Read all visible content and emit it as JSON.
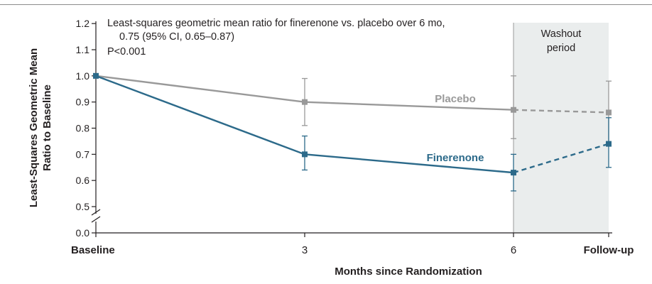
{
  "chart_data": {
    "type": "line",
    "categories": [
      "Baseline",
      "3",
      "6",
      "Follow-up"
    ],
    "xlabel": "Months since Randomization",
    "ylabel_lines": [
      "Least-Squares Geometric Mean",
      "Ratio to Baseline"
    ],
    "ylim": [
      0.0,
      1.2
    ],
    "y_axis_break": true,
    "yticks": [
      "0.0",
      "0.5",
      "0.6",
      "0.7",
      "0.8",
      "0.9",
      "1.0",
      "1.1",
      "1.2"
    ],
    "annotation_lines": [
      "Least-squares geometric mean ratio for finerenone vs. placebo over 6 mo,",
      "0.75 (95% CI, 0.65–0.87)",
      "P<0.001"
    ],
    "shaded_region": {
      "label_lines": [
        "Washout",
        "period"
      ],
      "from": "6",
      "to": "Follow-up",
      "color": "#eaeded"
    },
    "series": [
      {
        "name": "Placebo",
        "color": "#999999",
        "values": [
          1.0,
          0.9,
          0.87,
          0.86
        ],
        "ci_low": [
          null,
          0.81,
          0.76,
          0.74
        ],
        "ci_high": [
          null,
          0.99,
          1.0,
          0.98
        ],
        "dashed_last_segment": true
      },
      {
        "name": "Finerenone",
        "color": "#2c6a8a",
        "values": [
          1.0,
          0.7,
          0.63,
          0.74
        ],
        "ci_low": [
          null,
          0.64,
          0.56,
          0.65
        ],
        "ci_high": [
          null,
          0.77,
          0.7,
          0.84
        ],
        "dashed_last_segment": true
      }
    ]
  }
}
